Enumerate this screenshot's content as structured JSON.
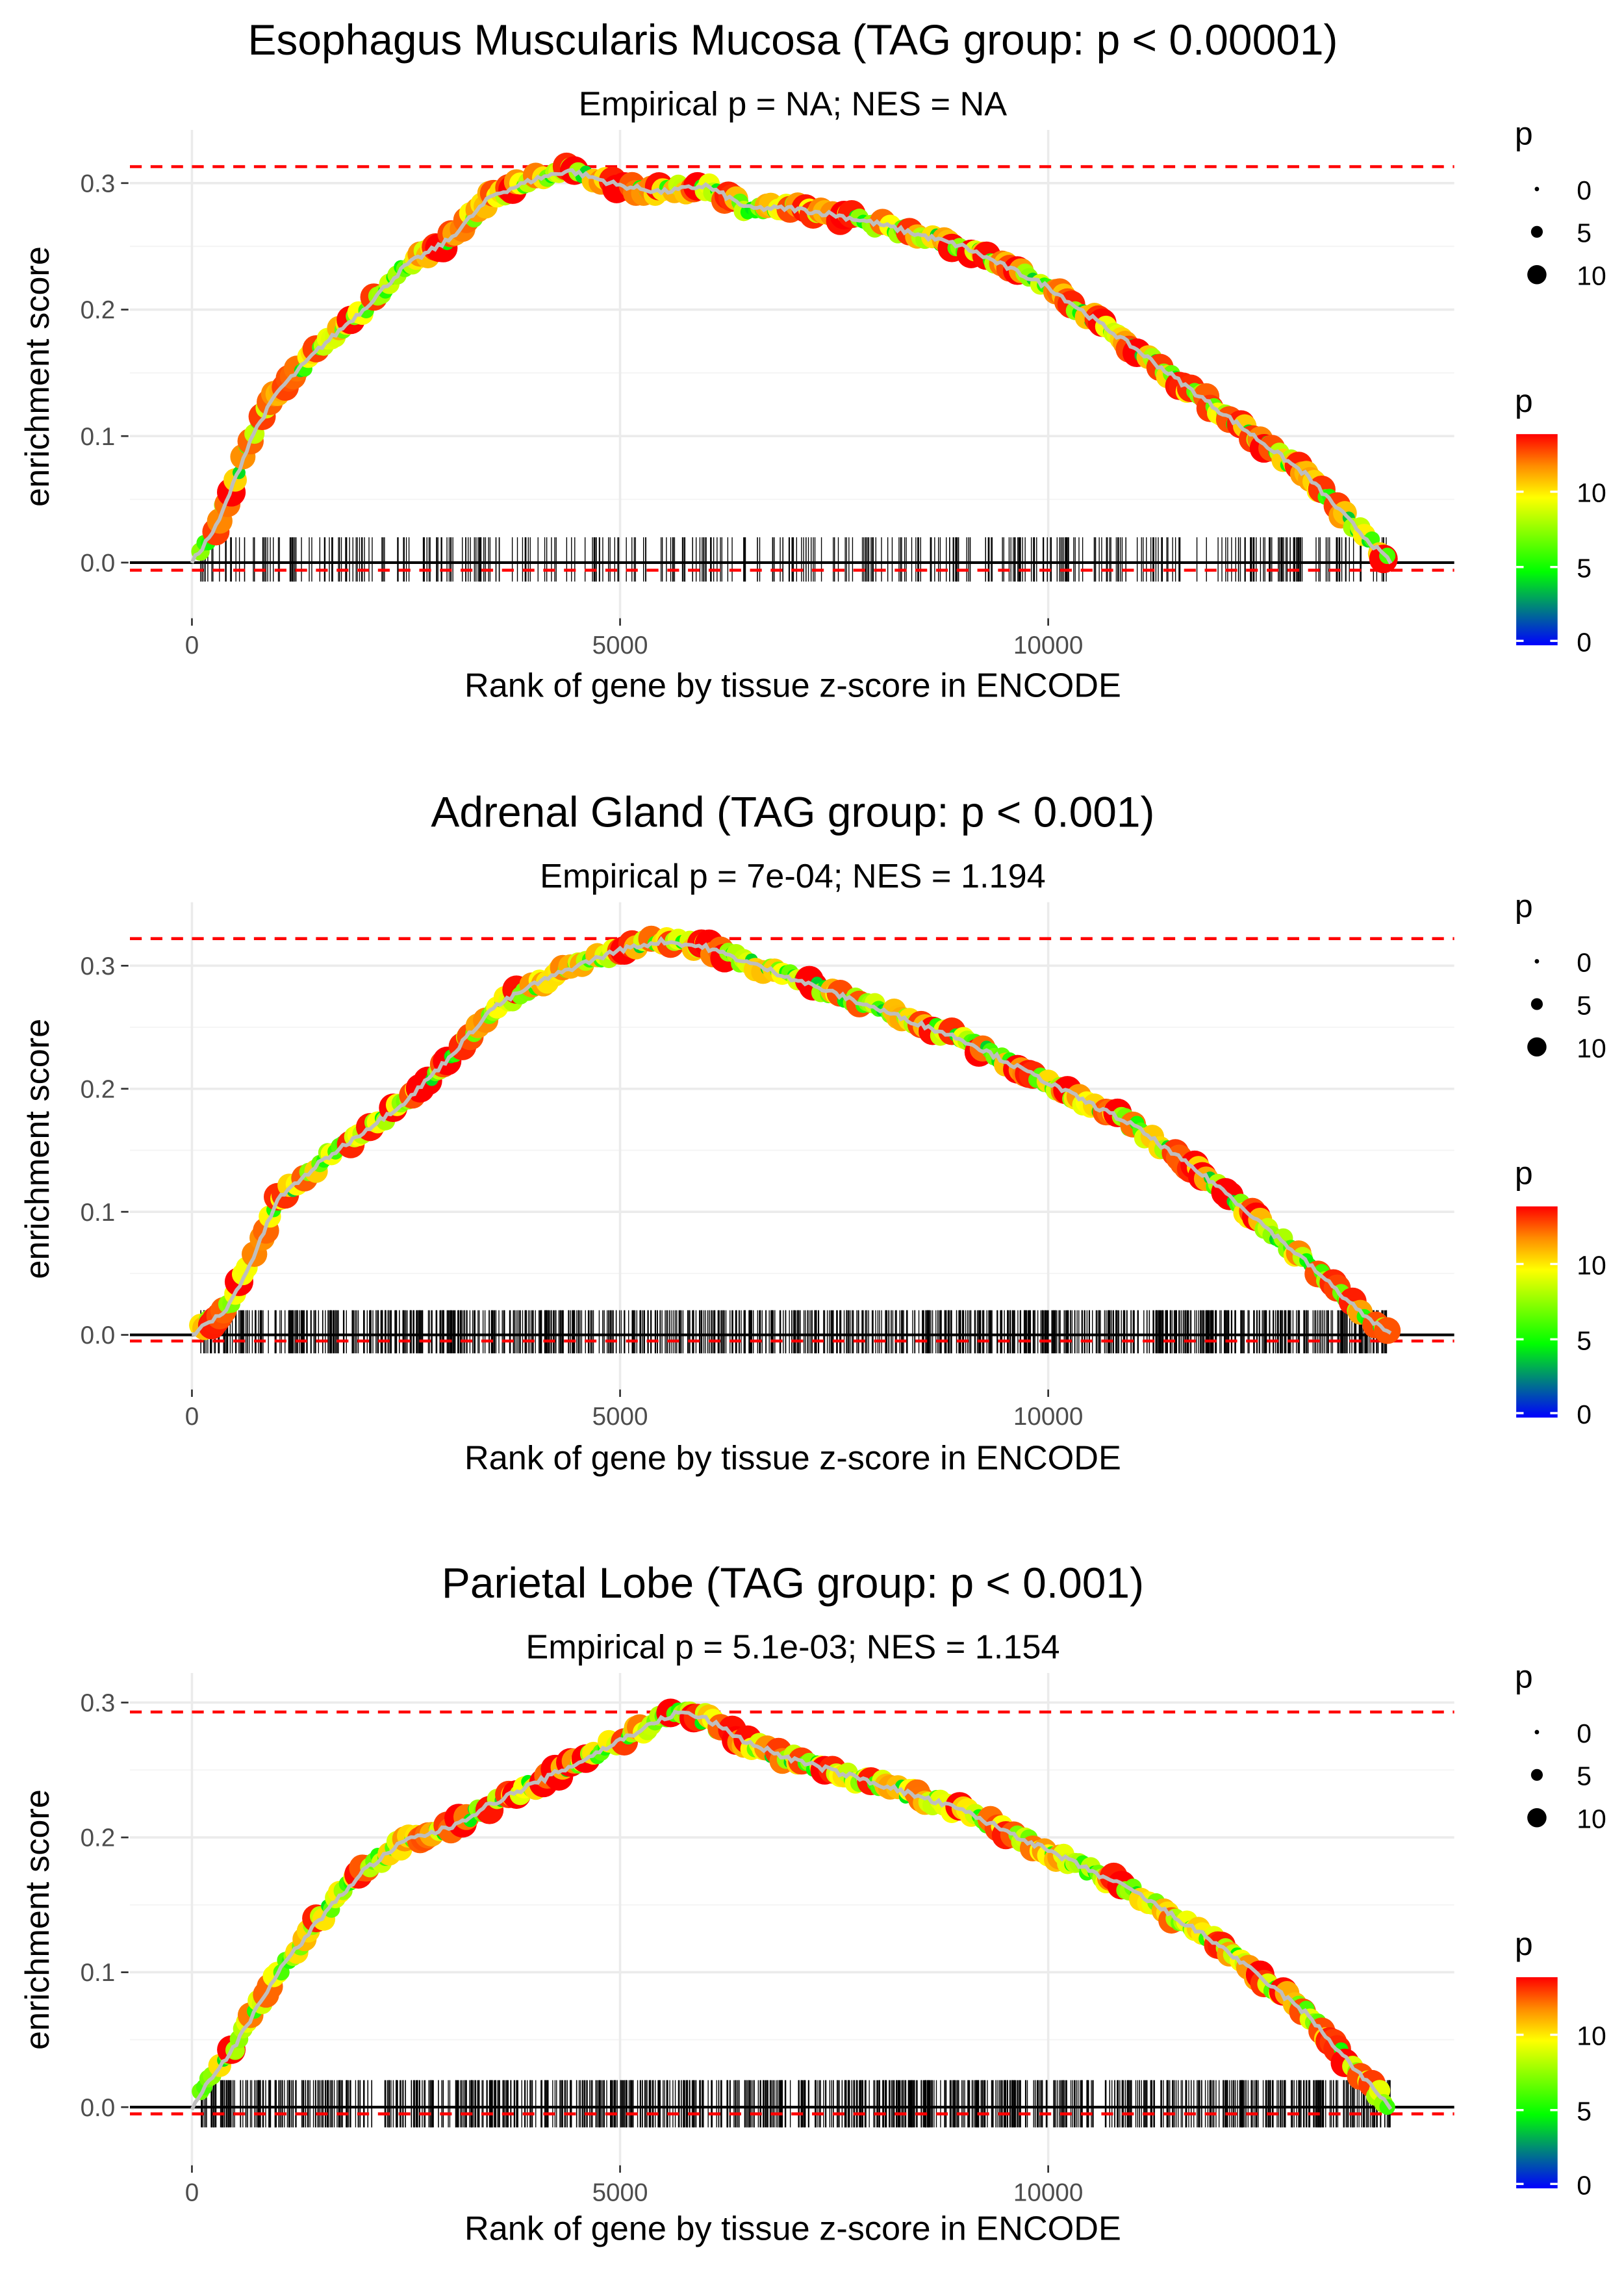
{
  "chart_data": [
    {
      "type": "line",
      "title": "Esophagus Muscularis Mucosa (TAG group: p < 0.00001)",
      "subtitle": "Empirical p = NA; NES = NA",
      "xlabel": "Rank of gene by tissue z-score in ENCODE",
      "ylabel": "enrichment score",
      "xticks": [
        "0",
        "5000",
        "10000"
      ],
      "yticks": [
        "0.0",
        "0.1",
        "0.2",
        "0.3"
      ],
      "xlim": [
        -400,
        14800
      ],
      "ylim": [
        -0.03,
        0.33
      ],
      "max_es_line": 0.313,
      "min_es_line": -0.006,
      "rug_count": 420,
      "curve": [
        [
          0,
          0
        ],
        [
          300,
          0.03
        ],
        [
          700,
          0.1
        ],
        [
          1000,
          0.135
        ],
        [
          1500,
          0.17
        ],
        [
          2000,
          0.2
        ],
        [
          2500,
          0.235
        ],
        [
          3000,
          0.255
        ],
        [
          3500,
          0.29
        ],
        [
          4000,
          0.303
        ],
        [
          4400,
          0.31
        ],
        [
          5000,
          0.298
        ],
        [
          5500,
          0.293
        ],
        [
          6000,
          0.298
        ],
        [
          6500,
          0.28
        ],
        [
          7000,
          0.28
        ],
        [
          7500,
          0.275
        ],
        [
          8000,
          0.268
        ],
        [
          9000,
          0.25
        ],
        [
          10000,
          0.218
        ],
        [
          11000,
          0.17
        ],
        [
          12000,
          0.12
        ],
        [
          13000,
          0.07
        ],
        [
          13700,
          0.02
        ],
        [
          14000,
          0
        ]
      ]
    },
    {
      "type": "line",
      "title": "Adrenal Gland (TAG group: p < 0.001)",
      "subtitle": "Empirical p = 7e-04; NES = 1.194",
      "xlabel": "Rank of gene by tissue z-score in ENCODE",
      "ylabel": "enrichment score",
      "xticks": [
        "0",
        "5000",
        "10000"
      ],
      "yticks": [
        "0.0",
        "0.1",
        "0.2",
        "0.3"
      ],
      "xlim": [
        -400,
        14800
      ],
      "ylim": [
        -0.03,
        0.34
      ],
      "max_es_line": 0.322,
      "min_es_line": -0.005,
      "rug_count": 1000,
      "curve": [
        [
          0,
          0
        ],
        [
          400,
          0.02
        ],
        [
          700,
          0.06
        ],
        [
          1000,
          0.11
        ],
        [
          1500,
          0.14
        ],
        [
          2000,
          0.165
        ],
        [
          2500,
          0.19
        ],
        [
          3000,
          0.225
        ],
        [
          3500,
          0.265
        ],
        [
          4000,
          0.285
        ],
        [
          4500,
          0.3
        ],
        [
          5000,
          0.313
        ],
        [
          5500,
          0.32
        ],
        [
          6000,
          0.315
        ],
        [
          7000,
          0.29
        ],
        [
          8000,
          0.265
        ],
        [
          9000,
          0.24
        ],
        [
          10000,
          0.205
        ],
        [
          11000,
          0.17
        ],
        [
          12000,
          0.12
        ],
        [
          13000,
          0.06
        ],
        [
          13700,
          0.015
        ],
        [
          14000,
          0
        ]
      ]
    },
    {
      "type": "line",
      "title": "Parietal Lobe (TAG group: p < 0.001)",
      "subtitle": "Empirical p = 5.1e-03; NES = 1.154",
      "xlabel": "Rank of gene by tissue z-score in ENCODE",
      "ylabel": "enrichment score",
      "xticks": [
        "0",
        "5000",
        "10000"
      ],
      "yticks": [
        "0.0",
        "0.1",
        "0.2",
        "0.3"
      ],
      "xlim": [
        -400,
        14800
      ],
      "ylim": [
        -0.03,
        0.31
      ],
      "max_es_line": 0.293,
      "min_es_line": -0.005,
      "rug_count": 1000,
      "curve": [
        [
          0,
          0
        ],
        [
          200,
          0.02
        ],
        [
          500,
          0.045
        ],
        [
          1000,
          0.1
        ],
        [
          1500,
          0.14
        ],
        [
          2000,
          0.175
        ],
        [
          2500,
          0.198
        ],
        [
          3000,
          0.207
        ],
        [
          3500,
          0.225
        ],
        [
          4000,
          0.24
        ],
        [
          4500,
          0.255
        ],
        [
          5000,
          0.272
        ],
        [
          5500,
          0.288
        ],
        [
          5700,
          0.293
        ],
        [
          6000,
          0.288
        ],
        [
          6500,
          0.27
        ],
        [
          7000,
          0.258
        ],
        [
          8000,
          0.24
        ],
        [
          9000,
          0.22
        ],
        [
          10000,
          0.19
        ],
        [
          11000,
          0.16
        ],
        [
          12000,
          0.12
        ],
        [
          13000,
          0.07
        ],
        [
          13700,
          0.02
        ],
        [
          14000,
          0
        ]
      ]
    }
  ],
  "legend": {
    "size_title": "p",
    "size_labels": [
      "0",
      "5",
      "10"
    ],
    "color_title": "p",
    "color_labels": [
      "10",
      "5",
      "0"
    ],
    "color_range": [
      0,
      14
    ],
    "colors": [
      "#0000ff",
      "#00ff00",
      "#ffff00",
      "#ff8c00",
      "#ff0000"
    ]
  },
  "colors": {
    "ref_line": "#ff0000",
    "curve": "#bebebe",
    "grid": "#ebebeb"
  }
}
